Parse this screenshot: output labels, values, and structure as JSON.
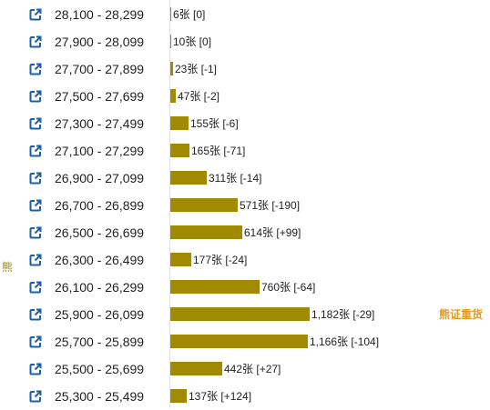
{
  "side_label": "熊",
  "chart_data": {
    "type": "bar",
    "orientation": "horizontal",
    "unit": "张",
    "max_value": 1182,
    "rows": [
      {
        "range": "28,100 - 28,299",
        "value": 6,
        "change": "[0]",
        "tag": ""
      },
      {
        "range": "27,900 - 28,099",
        "value": 10,
        "change": "[0]",
        "tag": ""
      },
      {
        "range": "27,700 - 27,899",
        "value": 23,
        "change": "[-1]",
        "tag": ""
      },
      {
        "range": "27,500 - 27,699",
        "value": 47,
        "change": "[-2]",
        "tag": ""
      },
      {
        "range": "27,300 - 27,499",
        "value": 155,
        "change": "[-6]",
        "tag": ""
      },
      {
        "range": "27,100 - 27,299",
        "value": 165,
        "change": "[-71]",
        "tag": ""
      },
      {
        "range": "26,900 - 27,099",
        "value": 311,
        "change": "[-14]",
        "tag": ""
      },
      {
        "range": "26,700 - 26,899",
        "value": 571,
        "change": "[-190]",
        "tag": ""
      },
      {
        "range": "26,500 - 26,699",
        "value": 614,
        "change": "[+99]",
        "tag": ""
      },
      {
        "range": "26,300 - 26,499",
        "value": 177,
        "change": "[-24]",
        "tag": ""
      },
      {
        "range": "26,100 - 26,299",
        "value": 760,
        "change": "[-64]",
        "tag": ""
      },
      {
        "range": "25,900 - 26,099",
        "value": 1182,
        "change": "[-29]",
        "tag": "熊证重货"
      },
      {
        "range": "25,700 - 25,899",
        "value": 1166,
        "change": "[-104]",
        "tag": ""
      },
      {
        "range": "25,500 - 25,699",
        "value": 442,
        "change": "[+27]",
        "tag": ""
      },
      {
        "range": "25,300 - 25,499",
        "value": 137,
        "change": "[+124]",
        "tag": ""
      }
    ]
  },
  "colors": {
    "bar": "#a08a00",
    "tag": "#e69a1c",
    "icon": "#1a5fa8"
  },
  "icons": {
    "row_link": "external-link-icon"
  }
}
